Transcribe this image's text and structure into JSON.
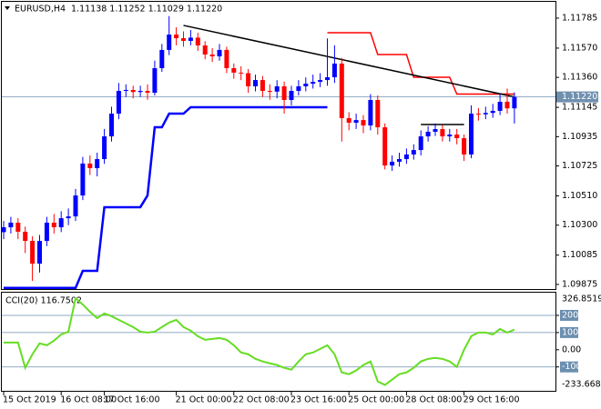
{
  "chart_data": [
    {
      "type": "candlestick",
      "title": "EURUSD,H4",
      "header": "1.11138 1.11252 1.11029 1.11220",
      "up_color": "#0000ff",
      "down_color": "#ff0000",
      "ylim": [
        1.09842,
        1.11889
      ],
      "yticks": [
        {
          "value": 1.11785,
          "label": "1.11785"
        },
        {
          "value": 1.1157,
          "label": "1.11570"
        },
        {
          "value": 1.1136,
          "label": "1.11360"
        },
        {
          "value": 1.11145,
          "label": "1.11145"
        },
        {
          "value": 1.10935,
          "label": "1.10935"
        },
        {
          "value": 1.10725,
          "label": "1.10725"
        },
        {
          "value": 1.1051,
          "label": "1.10510"
        },
        {
          "value": 1.103,
          "label": "1.10300"
        },
        {
          "value": 1.10085,
          "label": "1.10085"
        },
        {
          "value": 1.09875,
          "label": "1.09875"
        }
      ],
      "xticks": [
        {
          "value": 0,
          "label": "15 Oct 2019"
        },
        {
          "value": 8,
          "label": "16 Oct 08:00"
        },
        {
          "value": 14,
          "label": "17 Oct 16:00"
        },
        {
          "value": 24,
          "label": "21 Oct 00:00"
        },
        {
          "value": 32,
          "label": "22 Oct 08:00"
        },
        {
          "value": 40,
          "label": "23 Oct 16:00"
        },
        {
          "value": 48,
          "label": "25 Oct 00:00"
        },
        {
          "value": 56,
          "label": "28 Oct 08:00"
        },
        {
          "value": 64,
          "label": "29 Oct 16:00"
        }
      ],
      "current_price": {
        "value": 1.1122,
        "label": "1.11220"
      },
      "open": [
        1.1025,
        1.10285,
        1.10318,
        1.10253,
        1.10187,
        1.10024,
        1.10187,
        1.10318,
        1.10285,
        1.1035,
        1.10363,
        1.10513,
        1.10742,
        1.10709,
        1.10774,
        1.10937,
        1.111,
        1.11263,
        1.1127,
        1.11255,
        1.11263,
        1.1125,
        1.11426,
        1.11557,
        1.11667,
        1.11641,
        1.11622,
        1.11645,
        1.11589,
        1.11524,
        1.11511,
        1.11557,
        1.11426,
        1.11394,
        1.1139,
        1.11296,
        1.11341,
        1.11263,
        1.11258,
        1.11296,
        1.11198,
        1.11263,
        1.11296,
        1.11315,
        1.11328,
        1.11341,
        1.11361,
        1.11459,
        1.11068,
        1.11035,
        1.11054,
        1.11015,
        1.11198,
        1.11002,
        1.10728,
        1.10755,
        1.10774,
        1.10807,
        1.10839,
        1.10937,
        1.1097,
        1.10989,
        1.10937,
        1.1095,
        1.10924,
        1.10807,
        1.111,
        1.11095,
        1.11105,
        1.1112,
        1.11185,
        1.11138
      ],
      "high": [
        1.1033,
        1.1036,
        1.1035,
        1.1029,
        1.1022,
        1.1023,
        1.1036,
        1.1038,
        1.104,
        1.1042,
        1.1056,
        1.1079,
        1.108,
        1.1082,
        1.1099,
        1.1115,
        1.1132,
        1.1131,
        1.113,
        1.113,
        1.1131,
        1.1148,
        1.116,
        1.118,
        1.1172,
        1.1169,
        1.117,
        1.1168,
        1.1162,
        1.1157,
        1.116,
        1.1158,
        1.1146,
        1.1144,
        1.1142,
        1.1138,
        1.1137,
        1.1131,
        1.1134,
        1.1133,
        1.113,
        1.1134,
        1.1136,
        1.1138,
        1.1139,
        1.1164,
        1.1159,
        1.115,
        1.1111,
        1.111,
        1.1109,
        1.1124,
        1.1123,
        1.1103,
        1.108,
        1.1082,
        1.1085,
        1.1088,
        1.1098,
        1.1101,
        1.1103,
        1.1102,
        1.1099,
        1.1099,
        1.1095,
        1.1116,
        1.1114,
        1.1115,
        1.1117,
        1.1124,
        1.1128,
        1.11252
      ],
      "low": [
        1.102,
        1.1024,
        1.102,
        1.101,
        1.099,
        1.0996,
        1.1015,
        1.1024,
        1.1025,
        1.103,
        1.1033,
        1.1048,
        1.1066,
        1.1065,
        1.1074,
        1.109,
        1.1106,
        1.1122,
        1.1121,
        1.1122,
        1.112,
        1.1123,
        1.114,
        1.1152,
        1.1159,
        1.1158,
        1.1159,
        1.1155,
        1.1149,
        1.1147,
        1.1148,
        1.1139,
        1.1135,
        1.1134,
        1.1125,
        1.1126,
        1.1122,
        1.112,
        1.1121,
        1.111,
        1.1116,
        1.1123,
        1.1126,
        1.1128,
        1.1129,
        1.113,
        1.1132,
        1.109,
        1.1098,
        1.1099,
        1.1096,
        1.1098,
        1.1095,
        1.107,
        1.1069,
        1.1072,
        1.1074,
        1.1077,
        1.108,
        1.109,
        1.1094,
        1.109,
        1.109,
        1.1088,
        1.1076,
        1.1078,
        1.1105,
        1.1106,
        1.1107,
        1.1109,
        1.111,
        1.11029
      ],
      "close": [
        1.10285,
        1.10318,
        1.10253,
        1.10187,
        1.10024,
        1.10187,
        1.10318,
        1.10285,
        1.1035,
        1.10363,
        1.10513,
        1.10742,
        1.10709,
        1.10774,
        1.10937,
        1.111,
        1.11263,
        1.1127,
        1.11255,
        1.11263,
        1.1125,
        1.11426,
        1.11557,
        1.11667,
        1.11641,
        1.11622,
        1.11645,
        1.11589,
        1.11524,
        1.11511,
        1.11557,
        1.11426,
        1.11394,
        1.1139,
        1.11296,
        1.11341,
        1.11263,
        1.11258,
        1.11296,
        1.11198,
        1.11263,
        1.11296,
        1.11315,
        1.11328,
        1.11341,
        1.11361,
        1.11459,
        1.11068,
        1.11035,
        1.11054,
        1.11015,
        1.11198,
        1.11002,
        1.10728,
        1.10755,
        1.10774,
        1.10807,
        1.10839,
        1.10937,
        1.1097,
        1.10989,
        1.10937,
        1.1095,
        1.10924,
        1.10807,
        1.111,
        1.11095,
        1.11105,
        1.1112,
        1.11185,
        1.11138,
        1.1122
      ],
      "series": [
        {
          "color": "#0000ff",
          "values": [
            1.0985,
            1.0985,
            1.0985,
            1.0985,
            1.0985,
            1.0985,
            1.0985,
            1.0985,
            1.0985,
            1.0985,
            1.0985,
            1.09972,
            1.09972,
            1.09972,
            1.10429,
            1.10429,
            1.10429,
            1.10429,
            1.10429,
            1.10429,
            1.10513,
            1.11002,
            1.11002,
            1.111,
            1.111,
            1.111,
            1.11146,
            1.11146,
            1.11146,
            1.11146,
            1.11146,
            1.11146,
            1.11146,
            1.11146,
            1.11146,
            1.11146,
            1.11146,
            1.11146,
            1.11146,
            1.11146,
            1.11146,
            1.11146,
            1.11146,
            1.11146,
            1.11146,
            1.11146,
            null,
            null,
            null,
            null,
            null,
            null,
            null,
            null,
            null,
            null,
            null,
            null,
            null,
            null,
            null,
            null,
            null,
            null,
            null,
            null,
            null,
            null,
            null,
            null,
            null,
            null
          ]
        },
        {
          "color": "#ff0000",
          "values": [
            null,
            null,
            null,
            null,
            null,
            null,
            null,
            null,
            null,
            null,
            null,
            null,
            null,
            null,
            null,
            null,
            null,
            null,
            null,
            null,
            null,
            null,
            null,
            null,
            null,
            null,
            null,
            null,
            null,
            null,
            null,
            null,
            null,
            null,
            null,
            null,
            null,
            null,
            null,
            null,
            null,
            null,
            null,
            null,
            null,
            1.1168,
            1.1168,
            1.1168,
            1.1168,
            1.1168,
            1.1168,
            1.1168,
            1.11524,
            1.11524,
            1.11524,
            1.11524,
            1.11524,
            1.11361,
            1.11361,
            1.11361,
            1.11361,
            1.11361,
            1.11361,
            1.1124,
            1.1124,
            1.1124,
            1.1124,
            1.1124,
            1.1124,
            1.1124,
            1.1124,
            1.1124
          ]
        }
      ],
      "trendlines": [
        {
          "x": [
            25,
            71
          ],
          "y": [
            1.11733,
            1.1122
          ]
        },
        {
          "x": [
            58,
            64
          ],
          "y": [
            1.11022,
            1.11022
          ]
        }
      ]
    },
    {
      "type": "line",
      "title": "CCI(20) 116.7502",
      "color": "#66dd22",
      "ylim": [
        -233.6689,
        326.8519
      ],
      "yticks": [
        200,
        100,
        {
          "value": 0,
          "label": "0.00"
        },
        -100
      ],
      "levels": [
        200,
        100,
        -100
      ],
      "values": [
        42,
        42,
        42,
        -105,
        -26,
        37,
        26,
        53,
        89,
        105,
        300,
        263,
        221,
        184,
        211,
        195,
        174,
        153,
        132,
        105,
        100,
        105,
        132,
        158,
        174,
        132,
        111,
        79,
        58,
        63,
        68,
        58,
        26,
        -16,
        -26,
        -53,
        -68,
        -79,
        -89,
        -105,
        -116,
        -68,
        -26,
        -16,
        5,
        26,
        -26,
        -132,
        -142,
        -121,
        -89,
        -68,
        -184,
        -205,
        -174,
        -142,
        -132,
        -105,
        -68,
        -53,
        -47,
        -53,
        -68,
        -100,
        0,
        79,
        100,
        100,
        89,
        121,
        100,
        116.7502
      ]
    }
  ]
}
